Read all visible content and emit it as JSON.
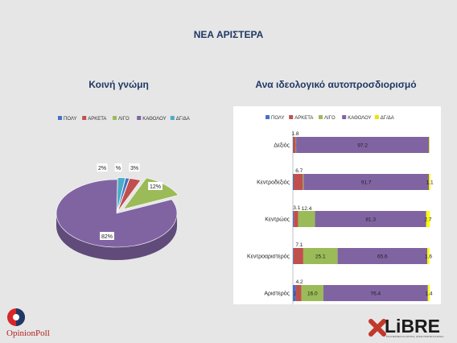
{
  "page": {
    "title": "ΝΕΑ ΑΡΙΣΤΕΡΑ",
    "left_subtitle": "Κοινή γνώμη",
    "right_subtitle": "Ανα ιδεολογικό αυτοπροσδιορισμό"
  },
  "logos": {
    "opinionpoll": "OpinionPoll",
    "libre": "LiBRE",
    "libre_tagline": "ΣΚΑΛΙΕΡΝΕΙ ΚΑΙ ΑΠΟΨΗ, ΟΠΩΣ ΠΡΕΠΕΙ ΝΑ ΕΙΝΑΙ..."
  },
  "colors": {
    "poly": "#4472c4",
    "arketa": "#c0504d",
    "ligo": "#9bbb59",
    "katholou": "#8064a2",
    "dgda": "#4bacc6",
    "dgda_bar": "#ffff00"
  },
  "chart_data": [
    {
      "type": "pie",
      "legend": [
        "ΠΟΛΥ",
        "ΑΡΚΕΤΑ",
        "ΛΙΓΟ",
        "ΚΑΘΟΛΟΥ",
        "ΔΓ/ΔΑ"
      ],
      "values": [
        1,
        3,
        12,
        82,
        2
      ],
      "data_labels": [
        "%",
        "3%",
        "12%",
        "82%",
        "2%"
      ],
      "legend_position": "top"
    },
    {
      "type": "bar",
      "orientation": "horizontal",
      "stacked": true,
      "categories": [
        "Δεξιός",
        "Κεντροδεξιός",
        "Κεντρώος",
        "Κεντροαριστερός",
        "Αριστερός"
      ],
      "series": [
        {
          "name": "ΠΟΛΥ",
          "values": [
            0.3,
            0.6,
            0.7,
            0.5,
            2.1
          ],
          "labels": [
            "0.3",
            "0.6",
            "",
            "0.5",
            "2.1"
          ]
        },
        {
          "name": "ΑΡΚΕΤΑ",
          "values": [
            1.8,
            6.7,
            3.1,
            7.1,
            4.2
          ],
          "labels": [
            "1.8",
            "6.7",
            "3.1",
            "7.1",
            "4.2"
          ]
        },
        {
          "name": "ΛΙΓΟ",
          "values": [
            0.3,
            0.5,
            12.4,
            25.1,
            16.0
          ],
          "labels": [
            "",
            "",
            "12.4",
            "25.1",
            "16.0"
          ]
        },
        {
          "name": "ΚΑΘΟΛΟΥ",
          "values": [
            97.2,
            91.7,
            81.3,
            65.6,
            76.4
          ],
          "labels": [
            "97.2",
            "91.7",
            "81.3",
            "65.6",
            "76.4"
          ]
        },
        {
          "name": "ΔΓ/ΔΑ",
          "values": [
            0.4,
            1.1,
            2.7,
            1.6,
            1.4
          ],
          "labels": [
            "",
            "1.1",
            "2.7",
            "1.6",
            "1.4"
          ]
        }
      ],
      "xlim": [
        0,
        100
      ],
      "legend_position": "top"
    }
  ]
}
